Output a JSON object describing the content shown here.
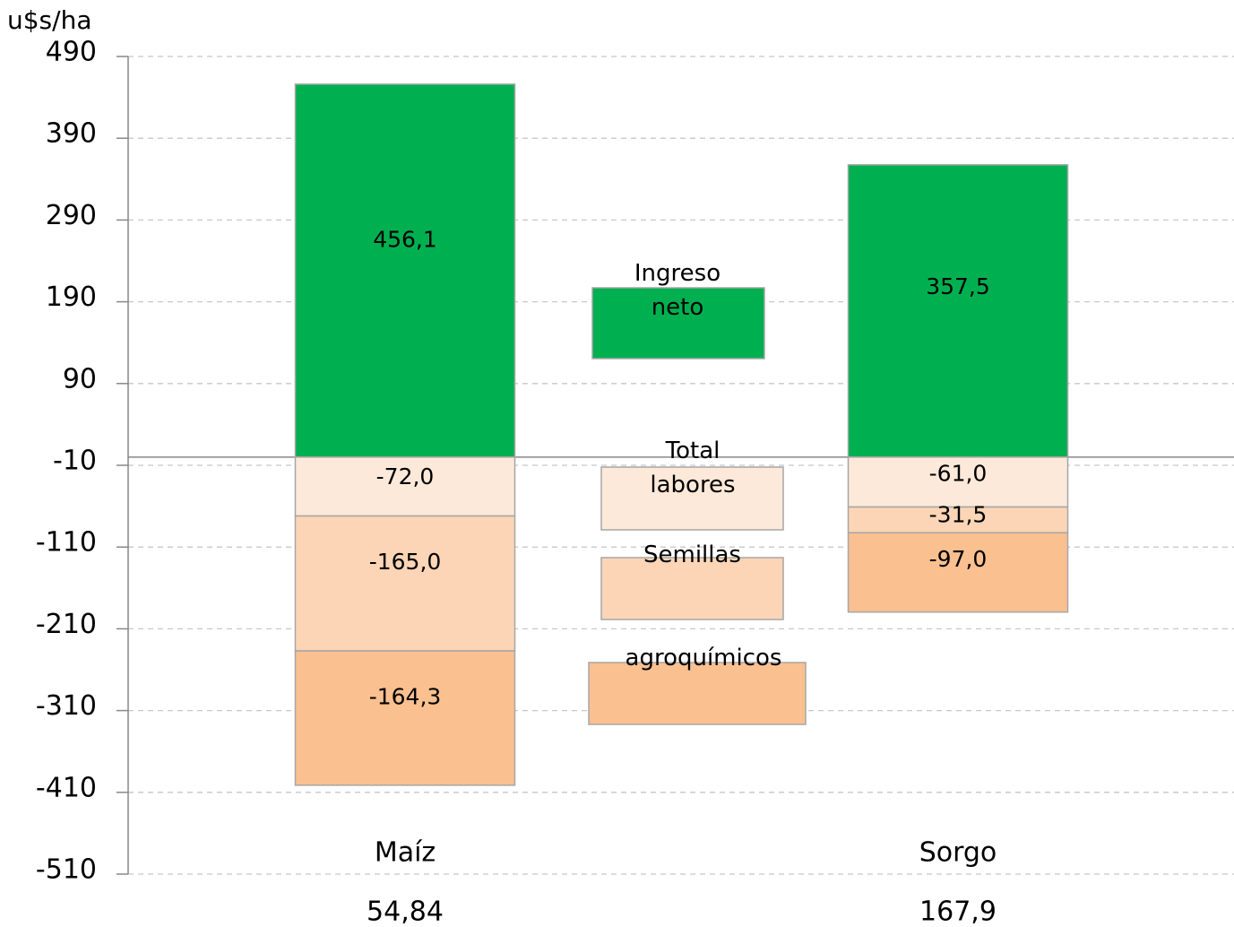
{
  "chart_data": {
    "type": "stacked_bar",
    "y_axis_label": "u$s/ha",
    "categories": [
      "Maíz",
      "Sorgo"
    ],
    "series": [
      {
        "name": "Ingreso neto",
        "color": "#00b050",
        "values": [
          456.1,
          357.5
        ],
        "value_labels": [
          "456,1",
          "357,5"
        ]
      },
      {
        "name": "Total labores",
        "color": "#fde9d9",
        "values": [
          -72.0,
          -61.0
        ],
        "value_labels": [
          "-72,0",
          "-61,0"
        ]
      },
      {
        "name": "Semillas",
        "color": "#fbd5b5",
        "values": [
          -165.0,
          -31.5
        ],
        "value_labels": [
          "-165,0",
          "-31,5"
        ]
      },
      {
        "name": "agroquímicos",
        "color": "#fac090",
        "values": [
          -164.3,
          -97.0
        ],
        "value_labels": [
          "-164,3",
          "-97,0"
        ]
      }
    ],
    "bottom_values": [
      54.84,
      167.9
    ],
    "bottom_value_labels": [
      "54,84",
      "167,9"
    ],
    "ylim": [
      -510,
      490
    ],
    "yticks": [
      490,
      390,
      290,
      190,
      90,
      -10,
      -110,
      -210,
      -310,
      -410,
      -510
    ],
    "grid": true
  }
}
